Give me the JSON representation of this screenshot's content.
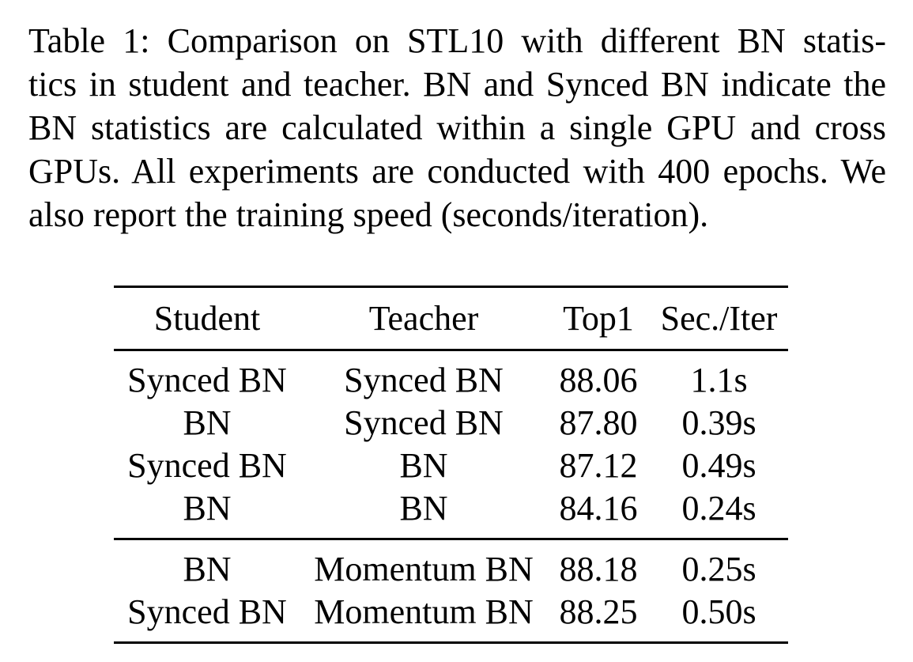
{
  "caption": {
    "lines": [
      "Table 1: Comparison on STL10 with different BN statis-",
      "tics in student and teacher. BN and Synced BN indicate the",
      "BN statistics are calculated within a single GPU and cross",
      "GPUs. All experiments are conducted with 400 epochs. We",
      "also report the training speed (seconds/iteration)."
    ]
  },
  "table": {
    "headers": [
      "Student",
      "Teacher",
      "Top1",
      "Sec./Iter"
    ],
    "group1": [
      [
        "Synced BN",
        "Synced BN",
        "88.06",
        "1.1s"
      ],
      [
        "BN",
        "Synced BN",
        "87.80",
        "0.39s"
      ],
      [
        "Synced BN",
        "BN",
        "87.12",
        "0.49s"
      ],
      [
        "BN",
        "BN",
        "84.16",
        "0.24s"
      ]
    ],
    "group2": [
      [
        "BN",
        "Momentum BN",
        "88.18",
        "0.25s"
      ],
      [
        "Synced BN",
        "Momentum BN",
        "88.25",
        "0.50s"
      ]
    ]
  }
}
